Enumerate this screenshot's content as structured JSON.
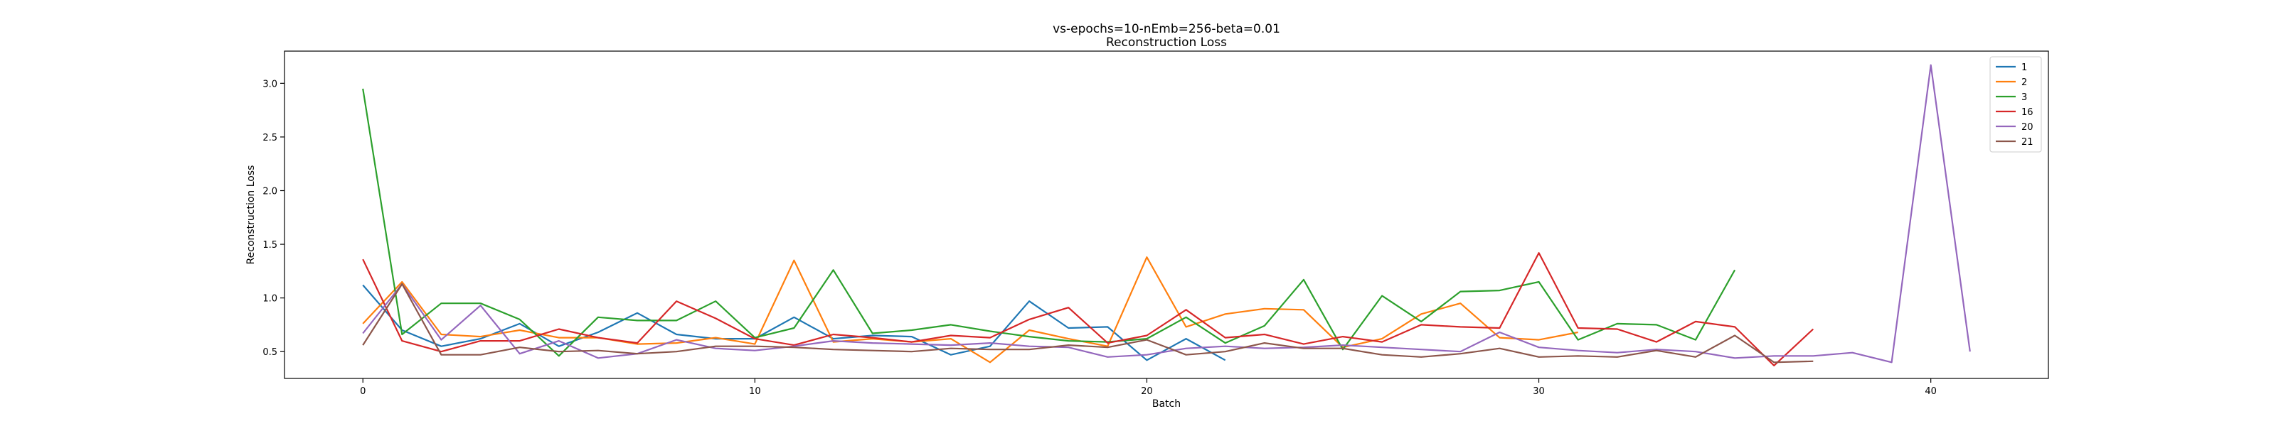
{
  "chart_data": {
    "type": "line",
    "title": "vs-epochs=10-nEmb=256-beta=0.01",
    "subtitle": "Reconstruction Loss",
    "xlabel": "Batch",
    "ylabel": "Reconstruction Loss",
    "xlim": [
      -2,
      43
    ],
    "ylim": [
      0.25,
      3.3
    ],
    "xticks": [
      0,
      10,
      20,
      30,
      40
    ],
    "yticks": [
      0.5,
      1.0,
      1.5,
      2.0,
      2.5,
      3.0
    ],
    "ytick_labels": [
      "0.5",
      "1.0",
      "1.5",
      "2.0",
      "2.5",
      "3.0"
    ],
    "grid": false,
    "legend_position": "top-right",
    "series": [
      {
        "name": "1",
        "color": "#1f77b4",
        "values": [
          1.12,
          0.7,
          0.55,
          0.62,
          0.76,
          0.55,
          0.68,
          0.86,
          0.66,
          0.62,
          0.62,
          0.82,
          0.62,
          0.65,
          0.64,
          0.47,
          0.55,
          0.97,
          0.72,
          0.73,
          0.42,
          0.62,
          0.42
        ]
      },
      {
        "name": "2",
        "color": "#ff7f0e",
        "values": [
          0.76,
          1.15,
          0.66,
          0.64,
          0.7,
          0.63,
          0.63,
          0.57,
          0.58,
          0.63,
          0.57,
          1.35,
          0.59,
          0.62,
          0.59,
          0.62,
          0.4,
          0.7,
          0.62,
          0.55,
          1.38,
          0.73,
          0.85,
          0.9,
          0.89,
          0.54,
          0.62,
          0.85,
          0.95,
          0.63,
          0.61,
          0.68
        ]
      },
      {
        "name": "3",
        "color": "#2ca02c",
        "values": [
          2.95,
          0.66,
          0.95,
          0.95,
          0.8,
          0.46,
          0.82,
          0.79,
          0.79,
          0.97,
          0.63,
          0.72,
          1.26,
          0.67,
          0.7,
          0.75,
          0.69,
          0.64,
          0.6,
          0.59,
          0.62,
          0.82,
          0.58,
          0.74,
          1.17,
          0.52,
          1.02,
          0.78,
          1.06,
          1.07,
          1.15,
          0.61,
          0.76,
          0.75,
          0.61,
          1.26
        ]
      },
      {
        "name": "16",
        "color": "#d62728",
        "values": [
          1.36,
          0.6,
          0.5,
          0.6,
          0.6,
          0.71,
          0.63,
          0.58,
          0.97,
          0.81,
          0.62,
          0.56,
          0.66,
          0.63,
          0.59,
          0.65,
          0.63,
          0.8,
          0.91,
          0.58,
          0.65,
          0.89,
          0.63,
          0.66,
          0.57,
          0.64,
          0.59,
          0.75,
          0.73,
          0.72,
          1.42,
          0.72,
          0.71,
          0.59,
          0.78,
          0.73,
          0.37,
          0.71
        ]
      },
      {
        "name": "20",
        "color": "#9467bd",
        "values": [
          0.67,
          1.13,
          0.61,
          0.93,
          0.48,
          0.6,
          0.44,
          0.48,
          0.61,
          0.53,
          0.51,
          0.55,
          0.6,
          0.58,
          0.57,
          0.56,
          0.58,
          0.55,
          0.54,
          0.45,
          0.47,
          0.53,
          0.55,
          0.53,
          0.54,
          0.56,
          0.54,
          0.52,
          0.5,
          0.68,
          0.54,
          0.51,
          0.49,
          0.52,
          0.5,
          0.44,
          0.46,
          0.46,
          0.49,
          0.4,
          3.17,
          0.5
        ]
      },
      {
        "name": "21",
        "color": "#8c564b",
        "values": [
          0.56,
          1.13,
          0.47,
          0.47,
          0.54,
          0.5,
          0.51,
          0.48,
          0.5,
          0.55,
          0.55,
          0.54,
          0.52,
          0.51,
          0.5,
          0.53,
          0.52,
          0.52,
          0.56,
          0.54,
          0.61,
          0.47,
          0.5,
          0.58,
          0.53,
          0.53,
          0.47,
          0.45,
          0.48,
          0.53,
          0.45,
          0.46,
          0.45,
          0.51,
          0.45,
          0.65,
          0.4,
          0.41
        ]
      }
    ]
  }
}
